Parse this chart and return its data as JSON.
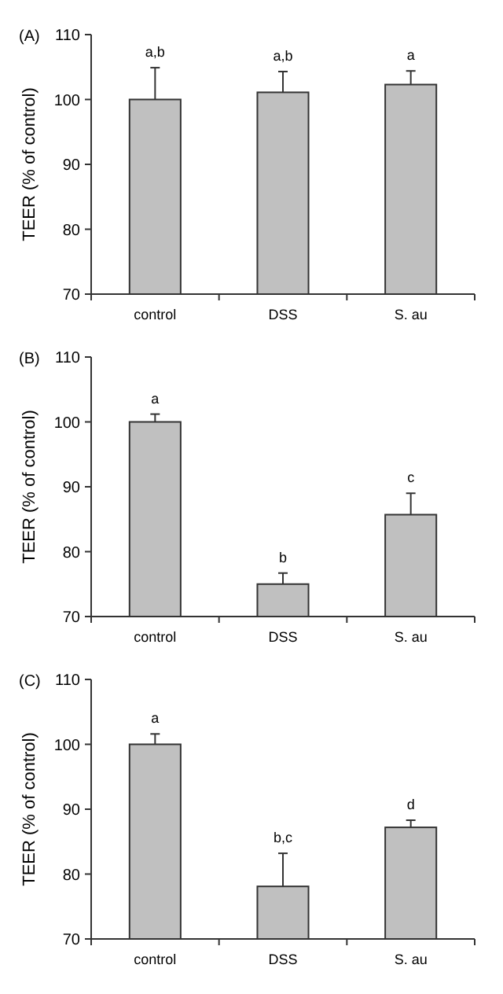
{
  "chart_data": [
    {
      "type": "bar",
      "title": "(A)",
      "ylabel": "TEER (% of control)",
      "categories": [
        "control",
        "DSS",
        "S. au"
      ],
      "values": [
        100,
        101.1,
        102.3
      ],
      "errors": [
        4.9,
        3.2,
        2.1
      ],
      "color": "#c0c0c0",
      "ylim": [
        70,
        110
      ],
      "yticks": [
        70,
        80,
        90,
        100,
        110
      ],
      "annotations": [
        {
          "text": "a,b",
          "x": "control",
          "y": 104.9
        },
        {
          "text": "a,b",
          "x": "DSS",
          "y": 104.3
        },
        {
          "text": "a",
          "x": "S. au",
          "y": 104.4
        }
      ]
    },
    {
      "type": "bar",
      "title": "(B)",
      "ylabel": "TEER (% of control)",
      "categories": [
        "control",
        "DSS",
        "S. au"
      ],
      "values": [
        100,
        75,
        85.7
      ],
      "errors": [
        1.2,
        1.7,
        3.3
      ],
      "color": "#c0c0c0",
      "ylim": [
        70,
        110
      ],
      "yticks": [
        70,
        80,
        90,
        100,
        110
      ],
      "annotations": [
        {
          "text": "a",
          "x": "control",
          "y": 101.2
        },
        {
          "text": "b",
          "x": "DSS",
          "y": 76.7
        },
        {
          "text": "c",
          "x": "S. au",
          "y": 89
        }
      ]
    },
    {
      "type": "bar",
      "title": "(C)",
      "ylabel": "TEER (% of control)",
      "categories": [
        "control",
        "DSS",
        "S. au"
      ],
      "values": [
        100,
        78.1,
        87.2
      ],
      "errors": [
        1.6,
        5.1,
        1.1
      ],
      "color": "#c0c0c0",
      "ylim": [
        70,
        110
      ],
      "yticks": [
        70,
        80,
        90,
        100,
        110
      ],
      "annotations": [
        {
          "text": "a",
          "x": "control",
          "y": 101.6
        },
        {
          "text": "b,c",
          "x": "DSS",
          "y": 83.2
        },
        {
          "text": "d",
          "x": "S. au",
          "y": 88.3
        }
      ]
    }
  ]
}
